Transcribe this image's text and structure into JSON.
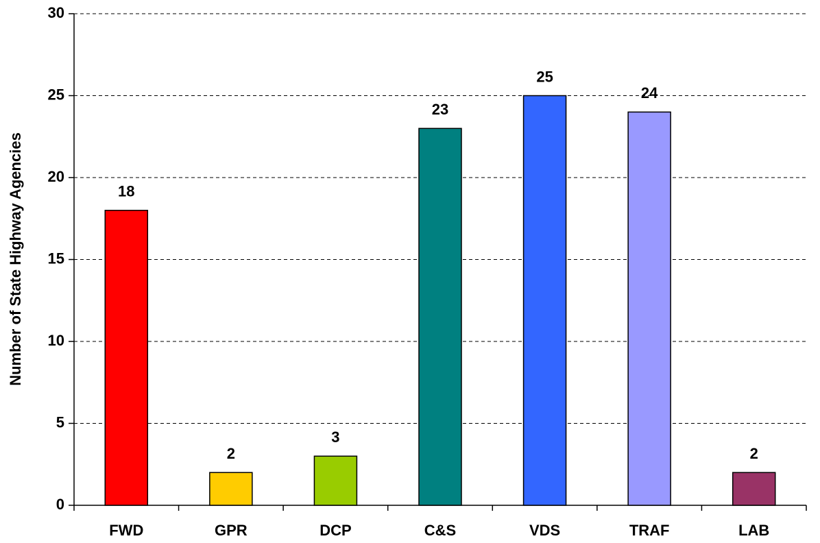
{
  "chart_data": {
    "type": "bar",
    "y_axis_label": "Number of State Highway Agencies",
    "categories": [
      "FWD",
      "GPR",
      "DCP",
      "C&S",
      "VDS",
      "TRAF",
      "LAB"
    ],
    "values": [
      18,
      2,
      3,
      23,
      25,
      24,
      2
    ],
    "colors": [
      "#ff0000",
      "#ffcc00",
      "#99cc00",
      "#008080",
      "#3366ff",
      "#9999ff",
      "#993366"
    ],
    "ylim": [
      0,
      30
    ],
    "yticks": [
      0,
      5,
      10,
      15,
      20,
      25,
      30
    ],
    "grid": true
  }
}
